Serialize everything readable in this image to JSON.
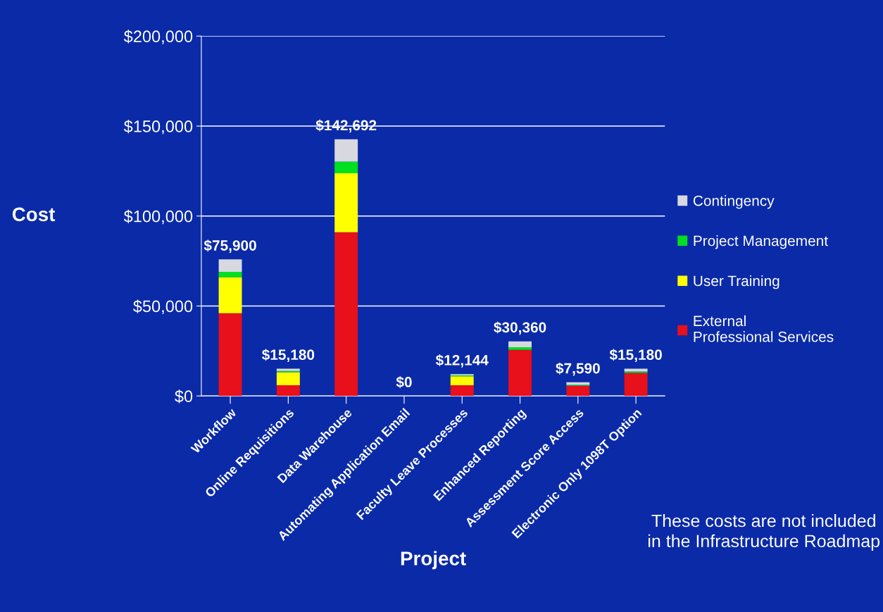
{
  "chart_data": {
    "type": "bar",
    "stacked": true,
    "xlabel": "Project",
    "ylabel": "Cost",
    "categories": [
      "Workflow",
      "Online Requisitions",
      "Data Warehouse",
      "Automating Application Email",
      "Faculty Leave Processes",
      "Enhanced Reporting",
      "Assessment Score Access",
      "Electronic Only 1098T Option"
    ],
    "series": [
      {
        "name": "External\nProfessional Services",
        "color": "#e8101a",
        "values": [
          46000,
          6000,
          91000,
          0,
          6000,
          25600,
          5700,
          12800
        ]
      },
      {
        "name": "User Training",
        "color": "#ffff00",
        "values": [
          20000,
          7200,
          32800,
          0,
          5000,
          0,
          0,
          0
        ]
      },
      {
        "name": "Project Management",
        "color": "#00e020",
        "values": [
          3000,
          700,
          6400,
          0,
          400,
          1500,
          500,
          800
        ]
      },
      {
        "name": "Contingency",
        "color": "#d8d8e0",
        "values": [
          6900,
          1280,
          12492,
          0,
          744,
          3260,
          1390,
          1580
        ]
      }
    ],
    "totals": [
      "$75,900",
      "$15,180",
      "$142,692",
      "$0",
      "$12,144",
      "$30,360",
      "$7,590",
      "$15,180"
    ],
    "ylim": [
      0,
      200000
    ],
    "yticks": [
      {
        "value": 0,
        "label": "$0"
      },
      {
        "value": 50000,
        "label": "$50,000"
      },
      {
        "value": 100000,
        "label": "$100,000"
      },
      {
        "value": 150000,
        "label": "$150,000"
      },
      {
        "value": 200000,
        "label": "$200,000"
      }
    ],
    "grid": "y",
    "legend": "right",
    "annotations": [
      "These costs are not included in the Infrastructure Roadmap"
    ]
  }
}
